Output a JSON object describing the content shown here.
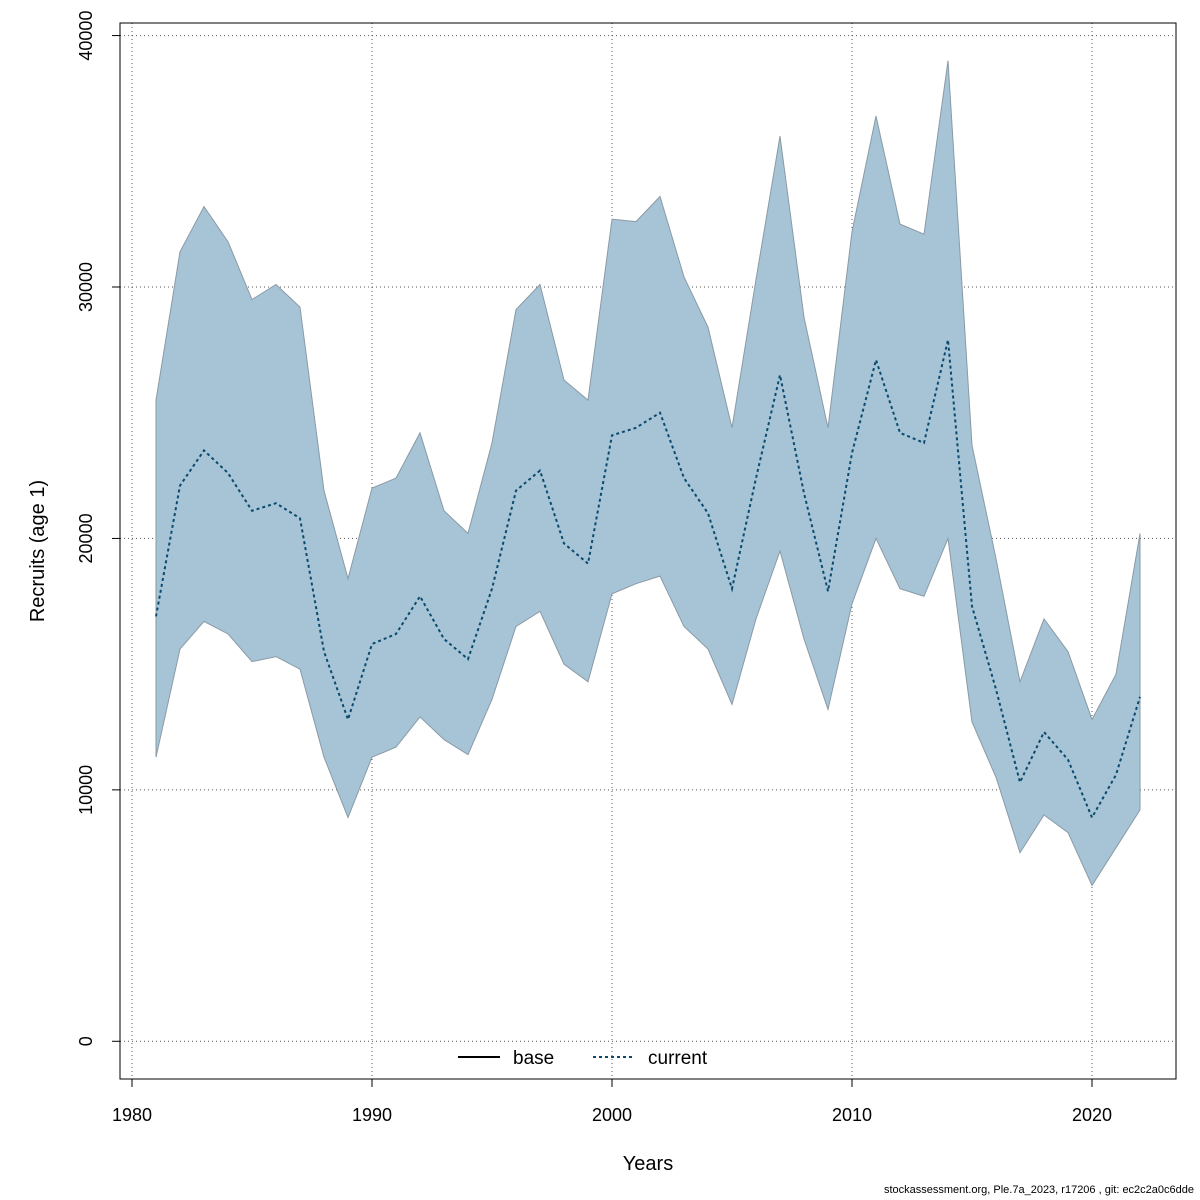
{
  "chart_data": {
    "type": "area",
    "xlabel": "Years",
    "ylabel": "Recruits (age 1)",
    "xlim": [
      1979.5,
      2023.5
    ],
    "ylim": [
      -1500,
      40500
    ],
    "xticks": [
      "1980",
      "1990",
      "2000",
      "2010",
      "2020"
    ],
    "yticks": [
      "0",
      "10000",
      "20000",
      "30000",
      "40000"
    ],
    "grid": true,
    "legend_position": "bottom-center",
    "colors": {
      "band": "#a6c4d5",
      "band_edge": "#8a9aa6",
      "current": "#0a4a6e",
      "base": "#000000",
      "grid": "#555555"
    },
    "years": [
      1981,
      1982,
      1983,
      1984,
      1985,
      1986,
      1987,
      1988,
      1989,
      1990,
      1991,
      1992,
      1993,
      1994,
      1995,
      1996,
      1997,
      1998,
      1999,
      2000,
      2001,
      2002,
      2003,
      2004,
      2005,
      2006,
      2007,
      2008,
      2009,
      2010,
      2011,
      2012,
      2013,
      2014,
      2015,
      2016,
      2017,
      2018,
      2019,
      2020,
      2021,
      2022
    ],
    "series": [
      {
        "name": "base",
        "style": "solid",
        "values": [
          16900,
          22100,
          23500,
          22600,
          21100,
          21400,
          20800,
          15500,
          12800,
          15800,
          16200,
          17700,
          16000,
          15200,
          18000,
          21900,
          22700,
          19800,
          19000,
          24100,
          24400,
          25000,
          22400,
          21000,
          18000,
          22400,
          26500,
          21800,
          17900,
          23400,
          27100,
          24200,
          23800,
          27900,
          17300,
          14000,
          10300,
          12300,
          11200,
          8900,
          10600,
          13700
        ]
      },
      {
        "name": "current",
        "style": "dotted",
        "values": [
          16900,
          22100,
          23500,
          22600,
          21100,
          21400,
          20800,
          15500,
          12800,
          15800,
          16200,
          17700,
          16000,
          15200,
          18000,
          21900,
          22700,
          19800,
          19000,
          24100,
          24400,
          25000,
          22400,
          21000,
          18000,
          22400,
          26500,
          21800,
          17900,
          23400,
          27100,
          24200,
          23800,
          27900,
          17300,
          14000,
          10300,
          12300,
          11200,
          8900,
          10600,
          13700
        ]
      }
    ],
    "upper": [
      25500,
      31400,
      33200,
      31800,
      29500,
      30100,
      29200,
      21900,
      18400,
      22000,
      22400,
      24200,
      21100,
      20200,
      23800,
      29100,
      30100,
      26300,
      25500,
      32700,
      32600,
      33600,
      30400,
      28400,
      24400,
      30300,
      36000,
      28800,
      24400,
      32200,
      36800,
      32500,
      32100,
      39000,
      23700,
      19200,
      14300,
      16800,
      15500,
      12800,
      14600,
      20200
    ],
    "lower": [
      11300,
      15600,
      16700,
      16200,
      15100,
      15300,
      14800,
      11300,
      8900,
      11300,
      11700,
      12900,
      12000,
      11400,
      13600,
      16500,
      17100,
      15000,
      14300,
      17800,
      18200,
      18500,
      16500,
      15600,
      13400,
      16800,
      19500,
      16000,
      13200,
      17400,
      20000,
      18000,
      17700,
      20000,
      12700,
      10500,
      7500,
      9000,
      8300,
      6200,
      7700,
      9200
    ],
    "legend": {
      "base": "base",
      "current": "current"
    }
  },
  "footer": "stockassessment.org, Ple.7a_2023, r17206 , git: ec2c2a0c6dde"
}
